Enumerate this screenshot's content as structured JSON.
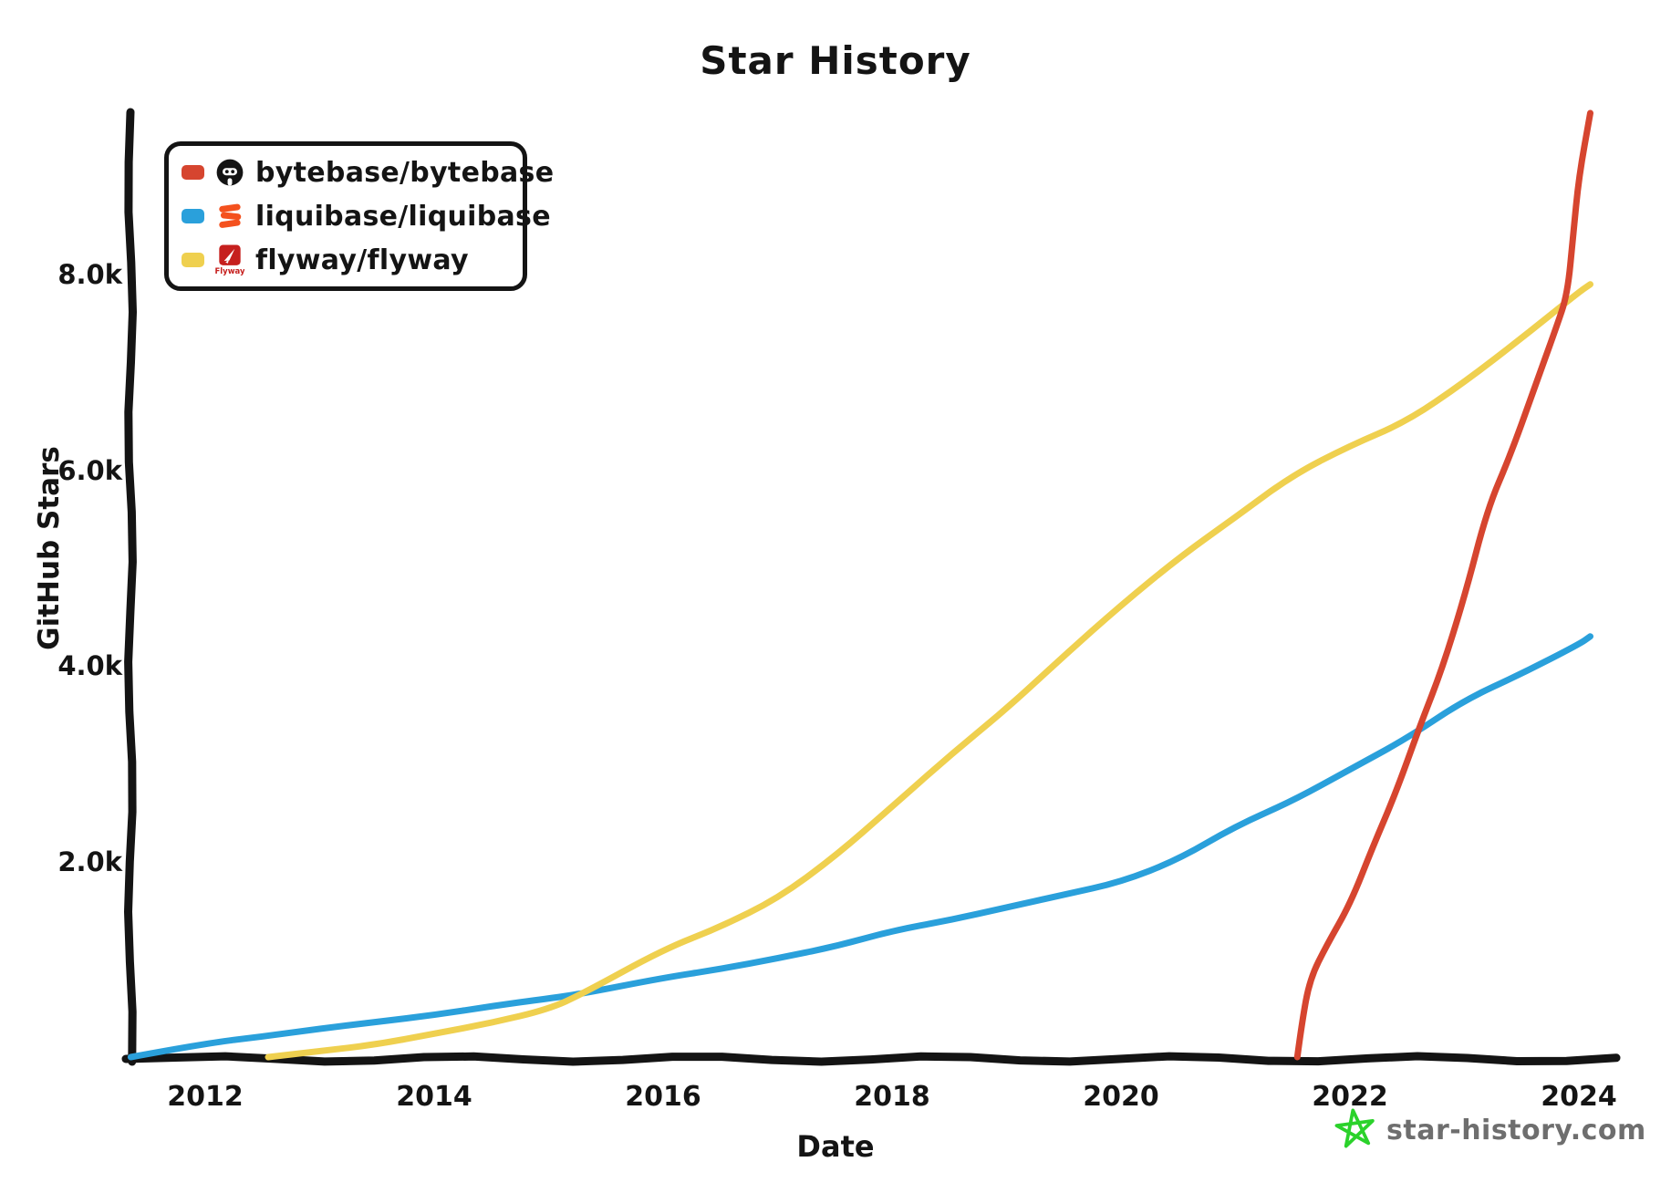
{
  "title": "Star History",
  "axes": {
    "x_label": "Date",
    "y_label": "GitHub Stars",
    "x_ticks": [
      {
        "label": "2012",
        "year": 2012
      },
      {
        "label": "2014",
        "year": 2014
      },
      {
        "label": "2016",
        "year": 2016
      },
      {
        "label": "2018",
        "year": 2018
      },
      {
        "label": "2020",
        "year": 2020
      },
      {
        "label": "2022",
        "year": 2022
      },
      {
        "label": "2024",
        "year": 2024
      }
    ],
    "y_ticks": [
      {
        "label": "2.0k",
        "value": 2000
      },
      {
        "label": "4.0k",
        "value": 4000
      },
      {
        "label": "6.0k",
        "value": 6000
      },
      {
        "label": "8.0k",
        "value": 8000
      }
    ],
    "axis_color": "#141414"
  },
  "legend": {
    "items": [
      {
        "label": "bytebase/bytebase",
        "color": "#D6452F",
        "icon": "bytebase-logo"
      },
      {
        "label": "liquibase/liquibase",
        "color": "#2AA0DB",
        "icon": "liquibase-logo"
      },
      {
        "label": "flyway/flyway",
        "color": "#EFD04F",
        "icon": "flyway-logo",
        "icon_caption": "Flyway"
      }
    ]
  },
  "footer": {
    "label": "star-history.com",
    "star_color": "#2BD22B",
    "text_color": "#6E6E6E"
  },
  "chart_data": {
    "type": "line",
    "title": "Star History",
    "xlabel": "Date",
    "ylabel": "GitHub Stars",
    "x_range": [
      2011.3,
      2024.2
    ],
    "y_range": [
      0,
      9700
    ],
    "grid": false,
    "legend_position": "top-left",
    "series": [
      {
        "name": "liquibase/liquibase",
        "color": "#2AA0DB",
        "points": [
          [
            2011.35,
            0
          ],
          [
            2012,
            140
          ],
          [
            2012.5,
            210
          ],
          [
            2013,
            290
          ],
          [
            2013.5,
            360
          ],
          [
            2014,
            430
          ],
          [
            2014.5,
            520
          ],
          [
            2015,
            600
          ],
          [
            2015.3,
            650
          ],
          [
            2016,
            810
          ],
          [
            2016.5,
            900
          ],
          [
            2017,
            1010
          ],
          [
            2017.5,
            1130
          ],
          [
            2018,
            1290
          ],
          [
            2018.5,
            1400
          ],
          [
            2019,
            1530
          ],
          [
            2019.5,
            1660
          ],
          [
            2020,
            1790
          ],
          [
            2020.5,
            2020
          ],
          [
            2021,
            2360
          ],
          [
            2021.5,
            2620
          ],
          [
            2022,
            2940
          ],
          [
            2022.5,
            3260
          ],
          [
            2023,
            3650
          ],
          [
            2023.5,
            3920
          ],
          [
            2024,
            4220
          ],
          [
            2024.1,
            4300
          ]
        ]
      },
      {
        "name": "flyway/flyway",
        "color": "#EFD04F",
        "points": [
          [
            2012.55,
            0
          ],
          [
            2013,
            60
          ],
          [
            2013.5,
            130
          ],
          [
            2014,
            240
          ],
          [
            2014.5,
            350
          ],
          [
            2015,
            490
          ],
          [
            2015.3,
            650
          ],
          [
            2016,
            1100
          ],
          [
            2016.5,
            1330
          ],
          [
            2017,
            1620
          ],
          [
            2017.5,
            2050
          ],
          [
            2018,
            2560
          ],
          [
            2018.5,
            3080
          ],
          [
            2019,
            3560
          ],
          [
            2019.5,
            4100
          ],
          [
            2020,
            4620
          ],
          [
            2020.5,
            5100
          ],
          [
            2021,
            5520
          ],
          [
            2021.5,
            5950
          ],
          [
            2022,
            6250
          ],
          [
            2022.5,
            6500
          ],
          [
            2023,
            6900
          ],
          [
            2023.5,
            7350
          ],
          [
            2024,
            7820
          ],
          [
            2024.1,
            7900
          ]
        ]
      },
      {
        "name": "bytebase/bytebase",
        "color": "#D6452F",
        "points": [
          [
            2021.54,
            0
          ],
          [
            2021.58,
            350
          ],
          [
            2021.65,
            800
          ],
          [
            2021.8,
            1150
          ],
          [
            2022,
            1560
          ],
          [
            2022.2,
            2150
          ],
          [
            2022.4,
            2700
          ],
          [
            2022.6,
            3350
          ],
          [
            2022.8,
            3950
          ],
          [
            2023,
            4700
          ],
          [
            2023.2,
            5600
          ],
          [
            2023.4,
            6150
          ],
          [
            2023.6,
            6800
          ],
          [
            2023.8,
            7450
          ],
          [
            2023.9,
            7800
          ],
          [
            2023.95,
            8400
          ],
          [
            2024,
            9000
          ],
          [
            2024.1,
            9650
          ]
        ]
      }
    ]
  }
}
